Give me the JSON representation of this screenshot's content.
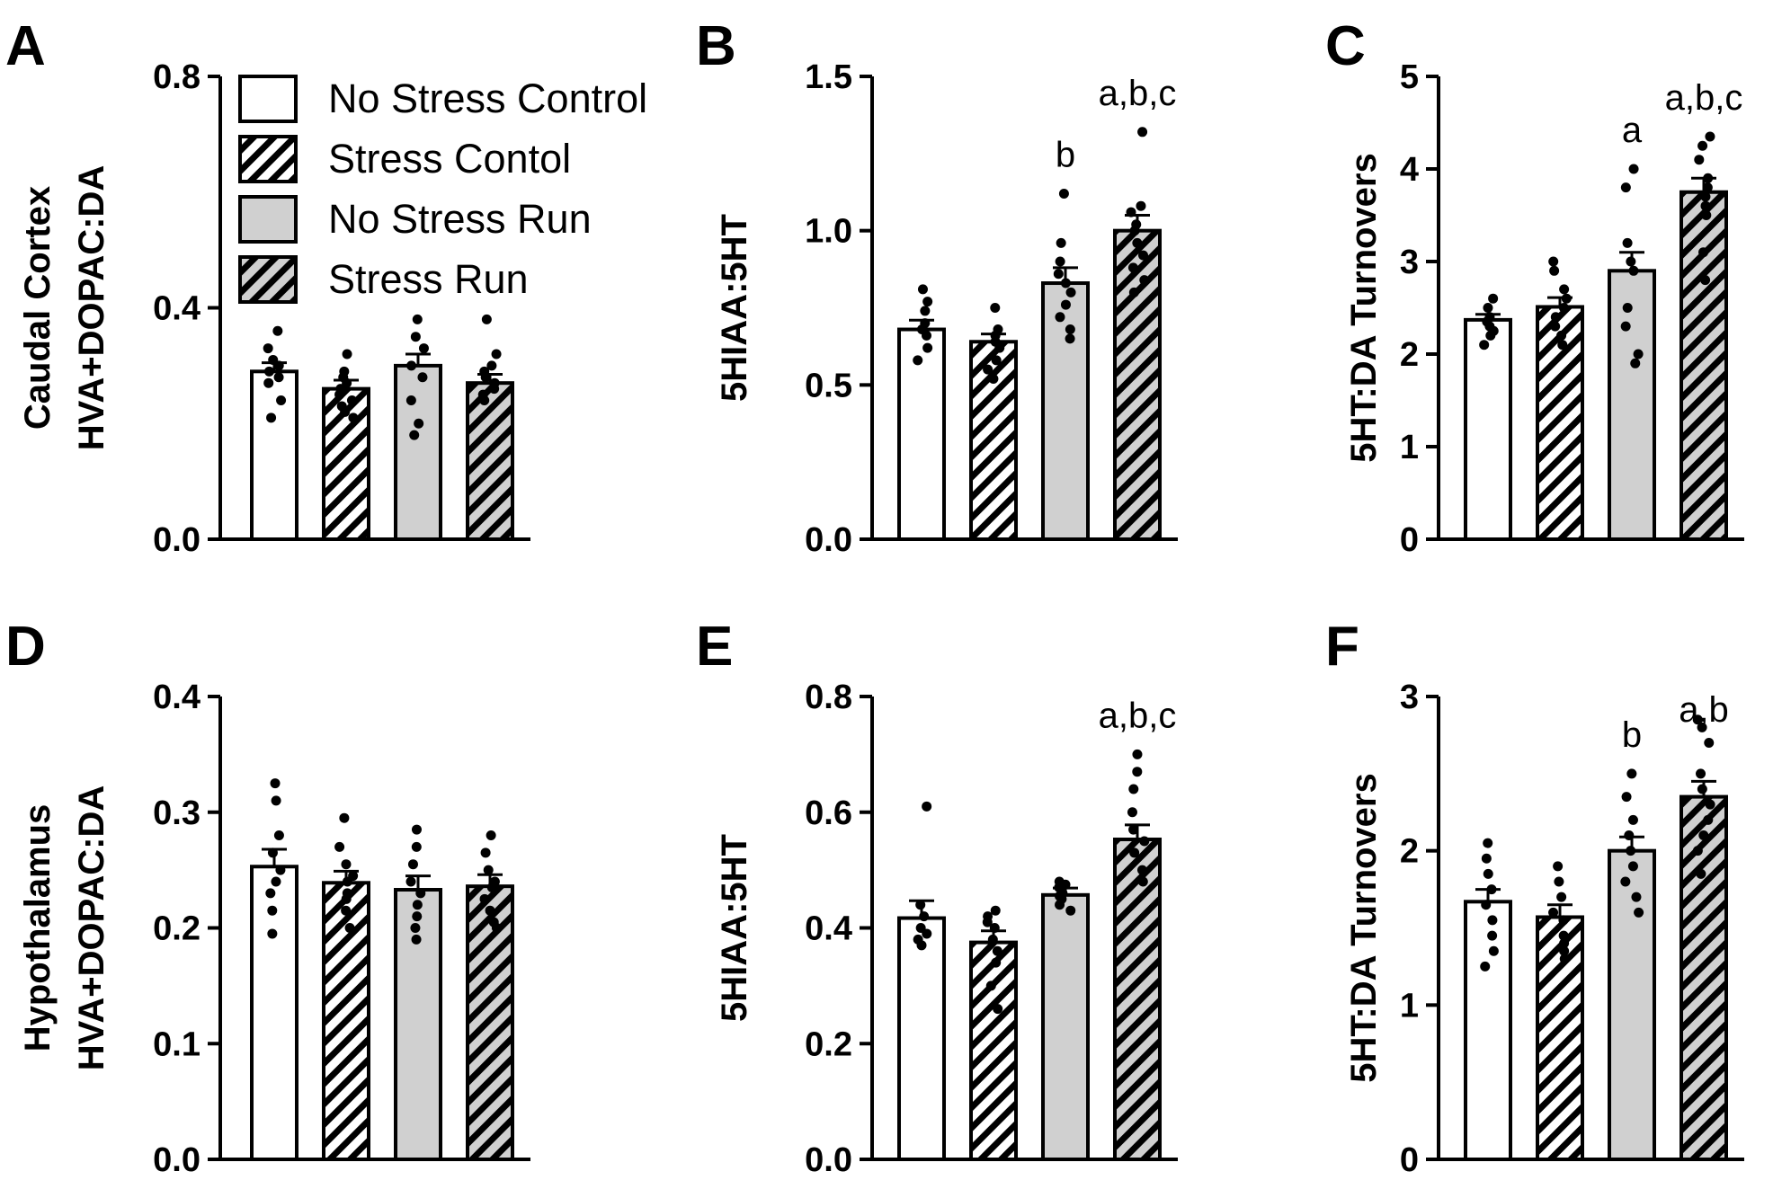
{
  "chart_data": [
    {
      "panel": "A",
      "type": "bar",
      "ylabel": [
        "Caudal Cortex",
        "HVA+DOPAC:DA"
      ],
      "ylim": [
        0,
        0.8
      ],
      "yticks": [
        0.0,
        0.4,
        0.8
      ],
      "tick_labels": [
        "0.0",
        "0.4",
        "0.8"
      ],
      "categories": [
        "No Stress Control",
        "Stress Contol",
        "No Stress Run",
        "Stress Run"
      ],
      "values": [
        0.29,
        0.26,
        0.3,
        0.27
      ],
      "sem": [
        0.015,
        0.015,
        0.02,
        0.015
      ],
      "points": [
        [
          0.36,
          0.33,
          0.31,
          0.3,
          0.29,
          0.28,
          0.27,
          0.24,
          0.21
        ],
        [
          0.32,
          0.29,
          0.28,
          0.27,
          0.26,
          0.25,
          0.24,
          0.23,
          0.22,
          0.21
        ],
        [
          0.38,
          0.35,
          0.33,
          0.3,
          0.28,
          0.24,
          0.2,
          0.18
        ],
        [
          0.38,
          0.32,
          0.3,
          0.29,
          0.28,
          0.27,
          0.26,
          0.25,
          0.24
        ]
      ],
      "significance": [
        "",
        "",
        "",
        ""
      ]
    },
    {
      "panel": "B",
      "type": "bar",
      "ylabel": [
        "5HIAA:5HT"
      ],
      "ylim": [
        0,
        1.5
      ],
      "yticks": [
        0.0,
        0.5,
        1.0,
        1.5
      ],
      "tick_labels": [
        "0.0",
        "0.5",
        "1.0",
        "1.5"
      ],
      "categories": [
        "No Stress Control",
        "Stress Contol",
        "No Stress Run",
        "Stress Run"
      ],
      "values": [
        0.68,
        0.64,
        0.83,
        1.0
      ],
      "sem": [
        0.03,
        0.025,
        0.05,
        0.05
      ],
      "points": [
        [
          0.81,
          0.77,
          0.74,
          0.7,
          0.68,
          0.66,
          0.62,
          0.58
        ],
        [
          0.75,
          0.68,
          0.66,
          0.64,
          0.62,
          0.58,
          0.55,
          0.52
        ],
        [
          1.12,
          0.96,
          0.9,
          0.86,
          0.83,
          0.8,
          0.76,
          0.72,
          0.68,
          0.65
        ],
        [
          1.32,
          1.08,
          1.06,
          1.02,
          1.0,
          0.96,
          0.92,
          0.88,
          0.84,
          0.8
        ]
      ],
      "significance": [
        "",
        "",
        "b",
        "a,b,c"
      ]
    },
    {
      "panel": "C",
      "type": "bar",
      "ylabel": [
        "5HT:DA Turnovers"
      ],
      "ylim": [
        0,
        5
      ],
      "yticks": [
        0,
        1,
        2,
        3,
        4,
        5
      ],
      "tick_labels": [
        "0",
        "1",
        "2",
        "3",
        "4",
        "5"
      ],
      "categories": [
        "No Stress Control",
        "Stress Contol",
        "No Stress Run",
        "Stress Run"
      ],
      "values": [
        2.37,
        2.51,
        2.9,
        3.75
      ],
      "sem": [
        0.06,
        0.1,
        0.2,
        0.15
      ],
      "points": [
        [
          2.6,
          2.5,
          2.4,
          2.35,
          2.3,
          2.25,
          2.2,
          2.1
        ],
        [
          3.0,
          2.9,
          2.7,
          2.6,
          2.5,
          2.4,
          2.3,
          2.2,
          2.1
        ],
        [
          4.0,
          3.8,
          3.2,
          3.0,
          2.9,
          2.5,
          2.3,
          2.0,
          1.9
        ],
        [
          4.35,
          4.25,
          4.1,
          3.9,
          3.8,
          3.7,
          3.6,
          3.5,
          3.1,
          2.8
        ]
      ],
      "significance": [
        "",
        "",
        "a",
        "a,b,c"
      ]
    },
    {
      "panel": "D",
      "type": "bar",
      "ylabel": [
        "Hypothalamus",
        "HVA+DOPAC:DA"
      ],
      "ylim": [
        0,
        0.4
      ],
      "yticks": [
        0.0,
        0.1,
        0.2,
        0.3,
        0.4
      ],
      "tick_labels": [
        "0.0",
        "0.1",
        "0.2",
        "0.3",
        "0.4"
      ],
      "categories": [
        "No Stress Control",
        "Stress Contol",
        "No Stress Run",
        "Stress Run"
      ],
      "values": [
        0.253,
        0.239,
        0.233,
        0.236
      ],
      "sem": [
        0.015,
        0.01,
        0.012,
        0.01
      ],
      "points": [
        [
          0.325,
          0.31,
          0.28,
          0.265,
          0.25,
          0.24,
          0.23,
          0.215,
          0.195
        ],
        [
          0.295,
          0.27,
          0.255,
          0.245,
          0.24,
          0.23,
          0.225,
          0.215,
          0.2
        ],
        [
          0.285,
          0.27,
          0.255,
          0.24,
          0.23,
          0.22,
          0.21,
          0.2,
          0.19
        ],
        [
          0.28,
          0.265,
          0.25,
          0.24,
          0.235,
          0.225,
          0.215,
          0.205,
          0.2
        ]
      ],
      "significance": [
        "",
        "",
        "",
        ""
      ]
    },
    {
      "panel": "E",
      "type": "bar",
      "ylabel": [
        "5HIAA:5HT"
      ],
      "ylim": [
        0,
        0.8
      ],
      "yticks": [
        0.0,
        0.2,
        0.4,
        0.6,
        0.8
      ],
      "tick_labels": [
        "0.0",
        "0.2",
        "0.4",
        "0.6",
        "0.8"
      ],
      "categories": [
        "No Stress Control",
        "Stress Contol",
        "No Stress Run",
        "Stress Run"
      ],
      "values": [
        0.417,
        0.375,
        0.457,
        0.553
      ],
      "sem": [
        0.03,
        0.02,
        0.012,
        0.025
      ],
      "points": [
        [
          0.61,
          0.44,
          0.42,
          0.4,
          0.39,
          0.38,
          0.37
        ],
        [
          0.43,
          0.42,
          0.41,
          0.4,
          0.38,
          0.36,
          0.34,
          0.3,
          0.26
        ],
        [
          0.48,
          0.475,
          0.47,
          0.46,
          0.455,
          0.45,
          0.44,
          0.43
        ],
        [
          0.7,
          0.67,
          0.64,
          0.6,
          0.57,
          0.55,
          0.53,
          0.5,
          0.48
        ]
      ],
      "significance": [
        "",
        "",
        "",
        "a,b,c"
      ]
    },
    {
      "panel": "F",
      "type": "bar",
      "ylabel": [
        "5HT:DA Turnovers"
      ],
      "ylim": [
        0,
        3
      ],
      "yticks": [
        0,
        1,
        2,
        3
      ],
      "tick_labels": [
        "0",
        "1",
        "2",
        "3"
      ],
      "categories": [
        "No Stress Control",
        "Stress Contol",
        "No Stress Run",
        "Stress Run"
      ],
      "values": [
        1.67,
        1.57,
        2.0,
        2.35
      ],
      "sem": [
        0.08,
        0.08,
        0.09,
        0.1
      ],
      "points": [
        [
          2.05,
          1.95,
          1.85,
          1.75,
          1.65,
          1.55,
          1.45,
          1.35,
          1.25
        ],
        [
          1.9,
          1.8,
          1.7,
          1.6,
          1.55,
          1.45,
          1.4,
          1.35,
          1.3
        ],
        [
          2.5,
          2.35,
          2.2,
          2.1,
          2.0,
          1.9,
          1.8,
          1.7,
          1.6
        ],
        [
          2.85,
          2.8,
          2.7,
          2.5,
          2.4,
          2.3,
          2.2,
          2.1,
          2.0,
          1.85
        ]
      ],
      "significance": [
        "",
        "",
        "b",
        "a,b"
      ]
    }
  ],
  "legend": {
    "entries": [
      {
        "label": "No Stress Control",
        "fill": "#ffffff",
        "hatch": false
      },
      {
        "label": "Stress Contol",
        "fill": "#ffffff",
        "hatch": true
      },
      {
        "label": "No Stress Run",
        "fill": "#d0d0d0",
        "hatch": false
      },
      {
        "label": "Stress Run",
        "fill": "#d0d0d0",
        "hatch": true
      }
    ]
  },
  "colors": {
    "axis": "#000000",
    "white_fill": "#ffffff",
    "grey_fill": "#d0d0d0",
    "dot": "#000000"
  }
}
